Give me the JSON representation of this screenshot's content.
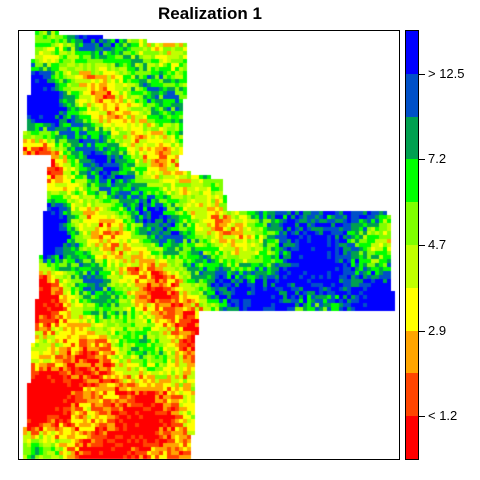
{
  "chart_data": {
    "type": "heatmap",
    "title": "Realization 1",
    "colorbar": {
      "colors": [
        "#FF0000",
        "#FF4500",
        "#FFA500",
        "#FFFF00",
        "#C0FF00",
        "#7FFF00",
        "#00FF00",
        "#00A050",
        "#0050C8",
        "#0000FF"
      ],
      "tick_labels": [
        "< 1.2",
        "2.9",
        "4.7",
        "7.2",
        "> 12.5"
      ],
      "tick_bins": [
        1,
        3,
        5,
        7,
        9
      ]
    }
  }
}
